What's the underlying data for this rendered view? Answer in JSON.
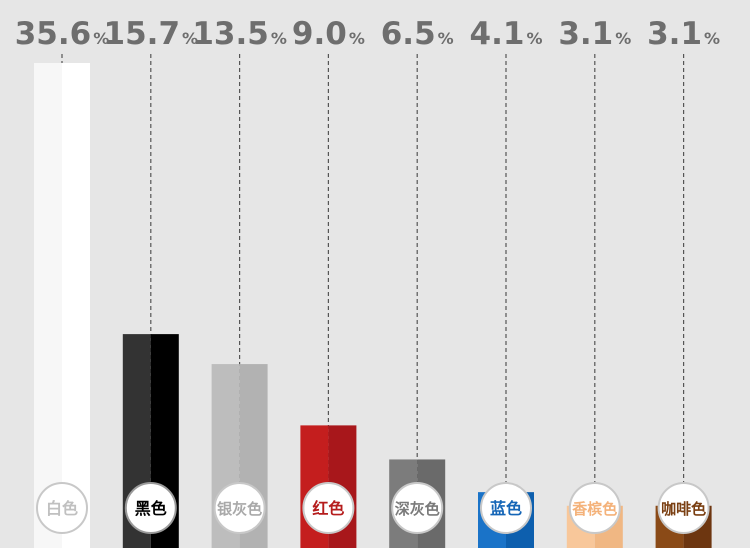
{
  "chart_data": {
    "type": "bar",
    "categories": [
      "白色",
      "黑色",
      "银灰色",
      "红色",
      "深灰色",
      "蓝色",
      "香槟色",
      "咖啡色"
    ],
    "values": [
      35.6,
      15.7,
      13.5,
      9.0,
      6.5,
      4.1,
      3.1,
      3.1
    ],
    "value_labels": [
      "35.6",
      "15.7",
      "13.5",
      "9.0",
      "6.5",
      "4.1",
      "3.1",
      "3.1"
    ],
    "unit": "%",
    "colors": [
      {
        "dark": "#f7f7f7",
        "light": "#ffffff",
        "text": "#c0c0c0",
        "ring": "#c8c8c8"
      },
      {
        "dark": "#333333",
        "light": "#000000",
        "text": "#000000",
        "ring": "#9a9a9a"
      },
      {
        "dark": "#bdbdbd",
        "light": "#b2b2b2",
        "text": "#a9a9a9",
        "ring": "#c8c8c8"
      },
      {
        "dark": "#c41e1e",
        "light": "#a8171b",
        "text": "#b51c1c",
        "ring": "#c8c8c8"
      },
      {
        "dark": "#7c7c7c",
        "light": "#6a6a6a",
        "text": "#7a7a7a",
        "ring": "#c8c8c8"
      },
      {
        "dark": "#1a73c8",
        "light": "#0d5fae",
        "text": "#1566b7",
        "ring": "#c8c8c8"
      },
      {
        "dark": "#f8c79a",
        "light": "#f0b783",
        "text": "#f4b27a",
        "ring": "#c8c8c8"
      },
      {
        "dark": "#8a4a17",
        "light": "#6d3610",
        "text": "#7a3f12",
        "ring": "#c8c8c8"
      }
    ],
    "ylim": [
      0,
      35.6
    ],
    "grid": false,
    "legend": "none"
  }
}
